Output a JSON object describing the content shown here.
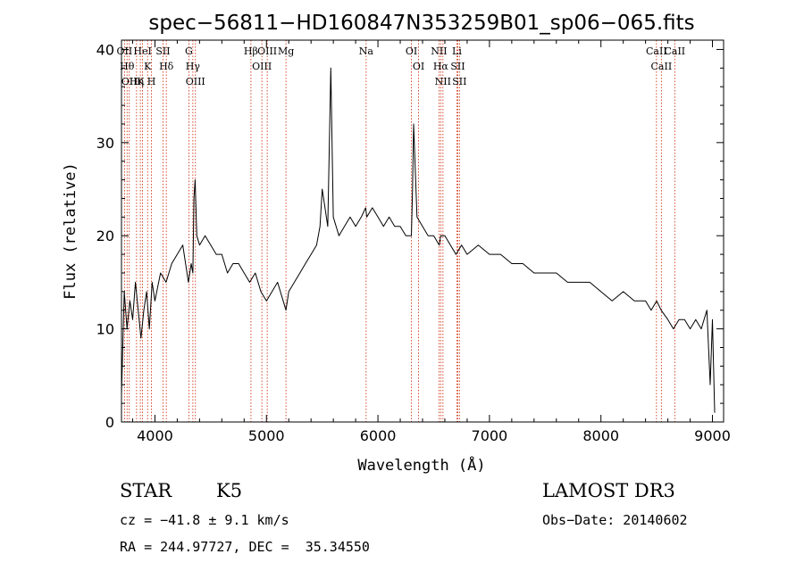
{
  "chart_data": {
    "type": "line",
    "title": "spec−56811−HD160847N353259B01_sp06−065.fits",
    "xlabel": "Wavelength (Å)",
    "ylabel": "Flux (relative)",
    "xlim": [
      3700,
      9100
    ],
    "ylim": [
      0,
      41
    ],
    "xticks": [
      4000,
      5000,
      6000,
      7000,
      8000,
      9000
    ],
    "yticks": [
      0,
      10,
      20,
      30,
      40
    ],
    "line_color": "#000000",
    "marker_color": "#cc2200",
    "series": [
      {
        "name": "spectrum",
        "x": [
          3700,
          3725,
          3750,
          3775,
          3800,
          3825,
          3850,
          3875,
          3900,
          3925,
          3950,
          3975,
          4000,
          4050,
          4100,
          4150,
          4200,
          4250,
          4300,
          4325,
          4340,
          4350,
          4360,
          4375,
          4400,
          4450,
          4500,
          4550,
          4600,
          4650,
          4700,
          4750,
          4800,
          4850,
          4900,
          4950,
          5000,
          5050,
          5100,
          5150,
          5175,
          5200,
          5250,
          5300,
          5350,
          5400,
          5450,
          5480,
          5500,
          5550,
          5577,
          5600,
          5650,
          5700,
          5750,
          5800,
          5850,
          5890,
          5900,
          5950,
          6000,
          6050,
          6100,
          6150,
          6200,
          6250,
          6300,
          6310,
          6320,
          6350,
          6400,
          6450,
          6500,
          6550,
          6563,
          6600,
          6650,
          6700,
          6750,
          6800,
          6900,
          7000,
          7100,
          7200,
          7300,
          7400,
          7500,
          7600,
          7700,
          7800,
          7900,
          8000,
          8100,
          8200,
          8300,
          8400,
          8450,
          8500,
          8540,
          8600,
          8650,
          8700,
          8750,
          8800,
          8850,
          8900,
          8950,
          8980,
          9000,
          9020
        ],
        "y": [
          3,
          14,
          10,
          13,
          11,
          15,
          12,
          9,
          12,
          14,
          10,
          15,
          13,
          16,
          15,
          17,
          18,
          19,
          15,
          17,
          16,
          24,
          26,
          20,
          19,
          20,
          19,
          18,
          18,
          16,
          17,
          17,
          16,
          15,
          16,
          14,
          13,
          14,
          15,
          13,
          12,
          14,
          15,
          16,
          17,
          18,
          19,
          21,
          25,
          21,
          38,
          22,
          20,
          21,
          22,
          21,
          22,
          23,
          22,
          23,
          22,
          21,
          22,
          21,
          21,
          20,
          20,
          25,
          32,
          22,
          21,
          20,
          20,
          19,
          20,
          20,
          19,
          18,
          19,
          18,
          19,
          18,
          18,
          17,
          17,
          16,
          16,
          16,
          15,
          15,
          15,
          14,
          13,
          14,
          13,
          13,
          12,
          13,
          12,
          11,
          10,
          11,
          11,
          10,
          11,
          10,
          12,
          4,
          11,
          1
        ]
      }
    ],
    "spectral_lines": [
      {
        "wave": 3727,
        "label": "OII"
      },
      {
        "wave": 3750,
        "label": "Hθ"
      },
      {
        "wave": 3770,
        "label": "OII"
      },
      {
        "wave": 3835,
        "label": "Hη"
      },
      {
        "wave": 3869,
        "label": "K"
      },
      {
        "wave": 3889,
        "label": "HeI"
      },
      {
        "wave": 3934,
        "label": "K"
      },
      {
        "wave": 3969,
        "label": "H"
      },
      {
        "wave": 4072,
        "label": "SII"
      },
      {
        "wave": 4102,
        "label": "Hδ"
      },
      {
        "wave": 4304,
        "label": "G"
      },
      {
        "wave": 4340,
        "label": "Hγ"
      },
      {
        "wave": 4363,
        "label": "OIII"
      },
      {
        "wave": 4861,
        "label": "Hβ"
      },
      {
        "wave": 4959,
        "label": "OIII"
      },
      {
        "wave": 5007,
        "label": "OIII"
      },
      {
        "wave": 5175,
        "label": "Mg"
      },
      {
        "wave": 5894,
        "label": "Na"
      },
      {
        "wave": 6300,
        "label": "OI"
      },
      {
        "wave": 6364,
        "label": "OI"
      },
      {
        "wave": 6548,
        "label": "NII"
      },
      {
        "wave": 6563,
        "label": "Hα"
      },
      {
        "wave": 6583,
        "label": "NII"
      },
      {
        "wave": 6708,
        "label": "Li"
      },
      {
        "wave": 6716,
        "label": "SII"
      },
      {
        "wave": 6731,
        "label": "SII"
      },
      {
        "wave": 8498,
        "label": "CaII"
      },
      {
        "wave": 8542,
        "label": "CaII"
      },
      {
        "wave": 8662,
        "label": "CaII"
      }
    ]
  },
  "info": {
    "object_class": "STAR",
    "subclass": "K5",
    "survey": "LAMOST DR3",
    "cz": "cz = −41.8 ± 9.1 km/s",
    "obs_date": "Obs−Date: 20140602",
    "radec": "RA = 244.97727, DEC =  35.34550"
  }
}
